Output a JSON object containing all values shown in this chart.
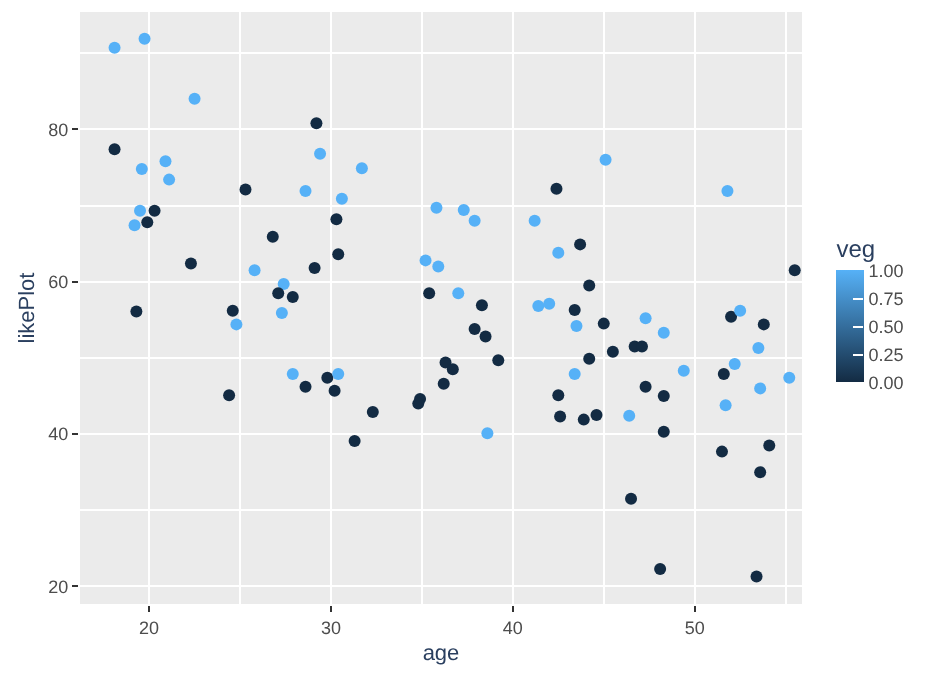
{
  "chart_data": {
    "type": "scatter",
    "xlabel": "age",
    "ylabel": "likePlot",
    "clabel": "veg",
    "x": [
      18.1,
      19.75,
      22.5,
      29.2,
      18.1,
      29.4,
      20.9,
      19.6,
      31.7,
      21.1,
      25.3,
      28.6,
      30.6,
      19.5,
      20.3,
      19.9,
      19.2,
      30.3,
      26.8,
      30.4,
      22.3,
      29.1,
      25.8,
      27.4,
      27.1,
      27.9,
      19.3,
      24.6,
      27.3,
      24.8,
      27.9,
      29.8,
      30.4,
      28.6,
      30.2,
      24.4,
      32.3,
      31.3,
      45.1,
      42.4,
      51.8,
      35.8,
      37.3,
      37.9,
      41.2,
      42.5,
      43.7,
      55.5,
      35.2,
      35.9,
      44.2,
      35.4,
      37.0,
      38.3,
      41.4,
      42.0,
      43.4,
      47.3,
      45.0,
      43.5,
      52.0,
      52.5,
      53.8,
      37.9,
      48.3,
      38.5,
      46.7,
      47.1,
      45.5,
      44.2,
      39.2,
      36.3,
      36.7,
      52.2,
      53.5,
      51.6,
      49.4,
      43.4,
      55.2,
      53.6,
      47.3,
      36.2,
      48.3,
      42.5,
      51.7,
      34.9,
      34.8,
      42.6,
      44.6,
      43.9,
      46.4,
      38.6,
      48.3,
      51.5,
      54.1,
      53.6,
      46.5,
      48.1,
      53.4
    ],
    "values": [
      90.7,
      91.9,
      84.0,
      80.8,
      77.4,
      76.8,
      75.8,
      74.8,
      74.9,
      73.4,
      72.1,
      71.9,
      70.9,
      69.3,
      69.3,
      67.8,
      67.4,
      68.2,
      65.9,
      63.6,
      62.4,
      61.8,
      61.5,
      59.7,
      58.5,
      58.0,
      56.1,
      56.2,
      55.9,
      54.4,
      47.9,
      47.4,
      47.9,
      46.2,
      45.7,
      45.1,
      42.9,
      39.1,
      76.0,
      72.2,
      71.9,
      69.7,
      69.4,
      68.0,
      68.0,
      63.8,
      64.9,
      61.5,
      62.8,
      62.0,
      59.5,
      58.5,
      58.5,
      56.9,
      56.8,
      57.1,
      56.3,
      55.2,
      54.5,
      54.2,
      55.4,
      56.2,
      54.4,
      53.8,
      53.3,
      52.8,
      51.5,
      51.5,
      50.8,
      49.9,
      49.7,
      49.4,
      48.5,
      49.2,
      51.3,
      47.9,
      48.3,
      47.9,
      47.4,
      46.0,
      46.2,
      46.6,
      45.0,
      45.1,
      43.8,
      44.6,
      44.0,
      42.3,
      42.5,
      41.9,
      42.4,
      40.1,
      40.3,
      37.7,
      38.5,
      35.0,
      31.5,
      22.3,
      21.3
    ],
    "cvalues": [
      1,
      1,
      1,
      0,
      0,
      1,
      1,
      1,
      1,
      1,
      0,
      1,
      1,
      1,
      0,
      0,
      1,
      0,
      0,
      0,
      0,
      0,
      1,
      1,
      0,
      0,
      0,
      0,
      1,
      1,
      1,
      0,
      1,
      0,
      0,
      0,
      0,
      0,
      1,
      0,
      1,
      1,
      1,
      1,
      1,
      1,
      0,
      0,
      1,
      1,
      0,
      0,
      1,
      0,
      1,
      1,
      0,
      1,
      0,
      1,
      0,
      1,
      0,
      0,
      1,
      0,
      0,
      0,
      0,
      0,
      0,
      0,
      0,
      1,
      1,
      0,
      1,
      1,
      1,
      1,
      0,
      0,
      0,
      0,
      1,
      0,
      0,
      0,
      0,
      0,
      1,
      1,
      0,
      0,
      0,
      0,
      0,
      0,
      0
    ],
    "clim": [
      0,
      1
    ],
    "cticks": [
      {
        "value": 0,
        "label": "0.00"
      },
      {
        "value": 0.25,
        "label": "0.25"
      },
      {
        "value": 0.5,
        "label": "0.50"
      },
      {
        "value": 0.75,
        "label": "0.75"
      },
      {
        "value": 1,
        "label": "1.00"
      }
    ],
    "xlim": [
      16.2,
      55.9
    ],
    "xticks": [
      20,
      30,
      40,
      50
    ],
    "ylim": [
      17.7,
      95.4
    ],
    "yticks": [
      20,
      40,
      60,
      80
    ],
    "grid": true,
    "marker": "circle"
  }
}
